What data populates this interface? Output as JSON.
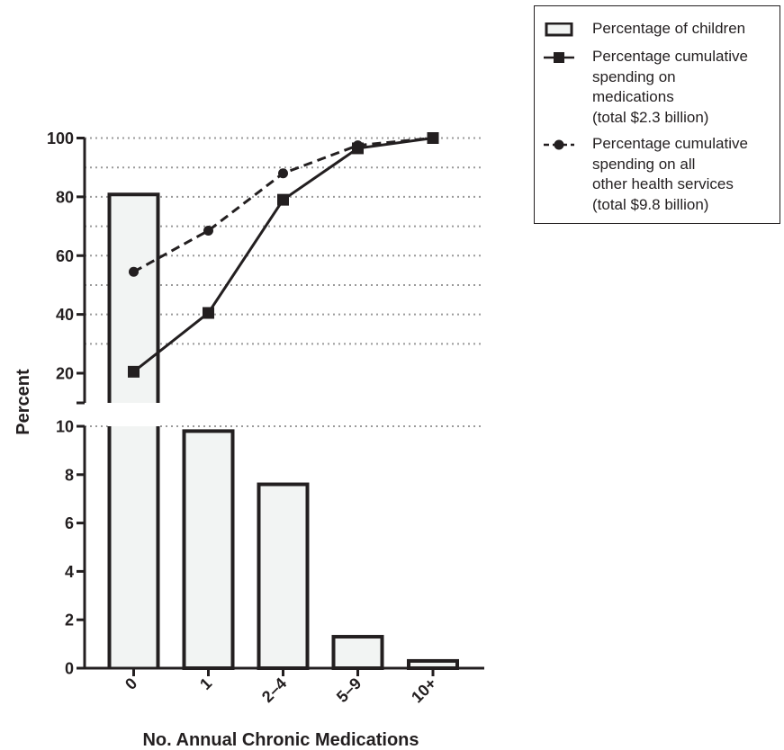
{
  "chart_data": {
    "type": "bar",
    "categories": [
      "0",
      "1",
      "2–4",
      "5–9",
      "10+"
    ],
    "xlabel": "No. Annual Chronic Medications",
    "ylabel": "Percent",
    "y_axis_break": true,
    "y_lower": {
      "ylim": [
        0,
        10
      ],
      "ticks": [
        "0",
        "2",
        "4",
        "6",
        "8",
        "10"
      ]
    },
    "y_upper": {
      "ylim": [
        13,
        100
      ],
      "ticks": [
        "20",
        "40",
        "60",
        "80",
        "100"
      ],
      "gridlines": [
        30,
        40,
        50,
        60,
        70,
        80,
        90,
        100
      ]
    },
    "grid": "dotted horizontal",
    "legend_position": "top-right outside",
    "series": [
      {
        "name": "Percentage of children",
        "kind": "bar",
        "values": [
          80.8,
          9.8,
          7.6,
          1.3,
          0.3
        ]
      },
      {
        "name": "Percentage cumulative\nspending on\nmedications\n(total $2.3 billion)",
        "kind": "line",
        "style": "solid",
        "marker": "square",
        "values": [
          20.5,
          40.5,
          79.0,
          96.5,
          100
        ]
      },
      {
        "name": "Percentage cumulative\nspending on all\nother health services\n(total $9.8 billion)",
        "kind": "line",
        "style": "dashed",
        "marker": "circle",
        "values": [
          54.5,
          68.5,
          88.0,
          97.5,
          100
        ]
      }
    ]
  }
}
